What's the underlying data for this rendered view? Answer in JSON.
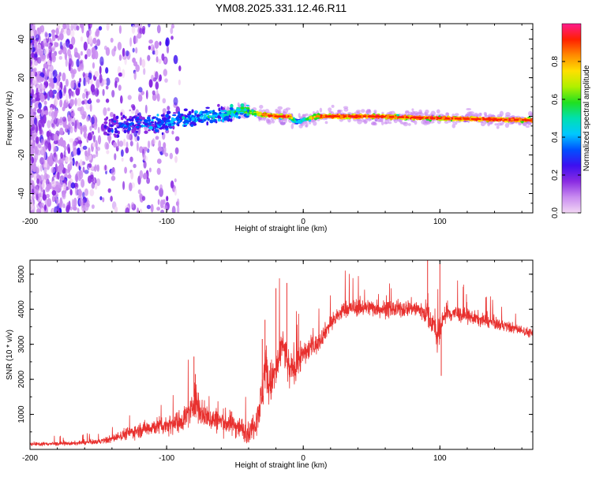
{
  "title": "YM08.2025.331.12.46.R11",
  "chart_data": [
    {
      "type": "heatmap",
      "name": "spectrogram",
      "xlabel": "Height of straight line (km)",
      "ylabel": "Frequency (Hz)",
      "xlim": [
        -200,
        168
      ],
      "ylim": [
        -50,
        48
      ],
      "x_ticks": [
        -200,
        -100,
        0,
        100
      ],
      "y_ticks": [
        -40,
        -20,
        0,
        20,
        40
      ],
      "colorbar": {
        "label": "Normalized spectral amplitude",
        "ticks": [
          0.0,
          0.2,
          0.4,
          0.6,
          0.8
        ],
        "range": [
          0,
          1
        ],
        "colors": [
          "#f2d6f4",
          "#c98cf0",
          "#8a2be2",
          "#3d10f0",
          "#0050ff",
          "#00c8ff",
          "#00e0b0",
          "#20e020",
          "#b0f000",
          "#ffe000",
          "#ff8a00",
          "#ff2000",
          "#ff1a8c"
        ]
      },
      "ridge": {
        "description": "main spectral ridge (frequency vs height)",
        "x": [
          -145,
          -120,
          -100,
          -80,
          -60,
          -45,
          -30,
          -20,
          -10,
          -5,
          0,
          10,
          50,
          100,
          168
        ],
        "y": [
          -5,
          -4,
          -3,
          -1,
          1,
          3,
          1,
          0,
          0,
          -3,
          -2,
          0,
          0,
          -1,
          -2
        ],
        "amplitude": [
          0.25,
          0.3,
          0.35,
          0.4,
          0.45,
          0.6,
          0.85,
          0.95,
          0.95,
          0.4,
          0.5,
          0.95,
          0.95,
          0.95,
          0.95
        ]
      }
    },
    {
      "type": "line",
      "name": "snr",
      "xlabel": "Height of straight line (km)",
      "ylabel": "SNR (10 * v/v)",
      "xlim": [
        -200,
        168
      ],
      "ylim": [
        0,
        5400
      ],
      "x_ticks": [
        -200,
        -100,
        0,
        100
      ],
      "y_ticks": [
        1000,
        2000,
        3000,
        4000,
        5000
      ],
      "color": "#e8302e",
      "series": [
        {
          "name": "SNR",
          "x": [
            -200,
            -170,
            -150,
            -140,
            -130,
            -120,
            -110,
            -100,
            -90,
            -82,
            -80,
            -75,
            -70,
            -60,
            -50,
            -45,
            -40,
            -35,
            -30,
            -28,
            -25,
            -20,
            -15,
            -10,
            -5,
            0,
            5,
            10,
            15,
            20,
            25,
            30,
            40,
            50,
            60,
            70,
            80,
            90,
            95,
            98,
            100,
            102,
            110,
            120,
            130,
            140,
            150,
            160,
            168
          ],
          "y": [
            150,
            170,
            220,
            300,
            450,
            550,
            650,
            700,
            800,
            1100,
            1500,
            1100,
            900,
            800,
            700,
            600,
            450,
            800,
            1500,
            2500,
            1800,
            2200,
            3000,
            2200,
            2500,
            2700,
            2900,
            3000,
            3300,
            3600,
            3800,
            4000,
            4050,
            4050,
            4000,
            4000,
            4050,
            3900,
            3600,
            3200,
            3300,
            3800,
            3900,
            3800,
            3700,
            3600,
            3500,
            3400,
            3300
          ],
          "noise": [
            80,
            80,
            100,
            160,
            250,
            300,
            350,
            400,
            450,
            600,
            800,
            600,
            500,
            500,
            500,
            450,
            400,
            600,
            900,
            1100,
            900,
            900,
            700,
            800,
            700,
            500,
            450,
            400,
            350,
            350,
            350,
            350,
            350,
            350,
            350,
            350,
            350,
            500,
            500,
            600,
            600,
            500,
            350,
            300,
            280,
            250,
            220,
            200,
            180
          ],
          "spikes": [
            {
              "x": -80,
              "y": 2650
            },
            {
              "x": -79,
              "y": 2150
            },
            {
              "x": -30,
              "y": 3150
            },
            {
              "x": -28,
              "y": 3700
            },
            {
              "x": -20,
              "y": 4600
            },
            {
              "x": -12,
              "y": 4750
            },
            {
              "x": -2,
              "y": 3100
            },
            {
              "x": 91,
              "y": 5400
            },
            {
              "x": 100,
              "y": 5300
            },
            {
              "x": 101,
              "y": 2100
            }
          ]
        }
      ]
    }
  ]
}
